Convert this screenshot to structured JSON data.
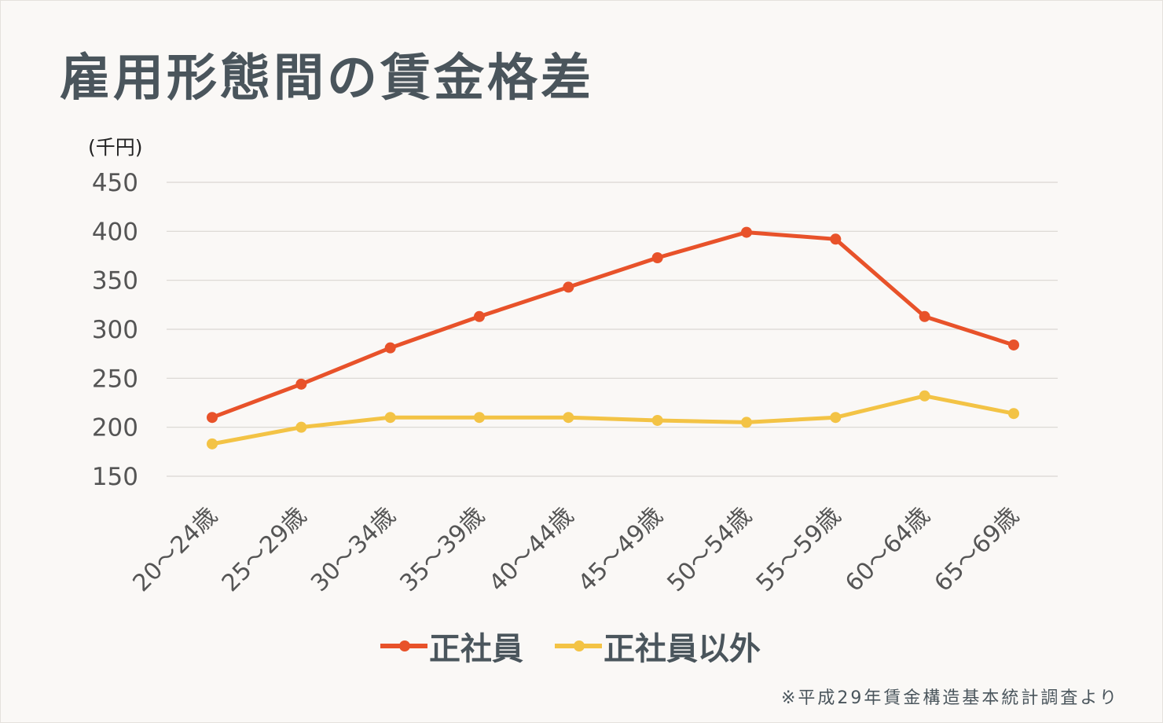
{
  "title": "雇用形態間の賃金格差",
  "source_note": "※平成29年賃金構造基本統計調査より",
  "chart_data": {
    "type": "line",
    "title": "雇用形態間の賃金格差",
    "ylabel": "(千円)",
    "xlabel": "",
    "ylim": [
      150,
      450
    ],
    "yticks": [
      150,
      200,
      250,
      300,
      350,
      400,
      450
    ],
    "grid": true,
    "legend_position": "bottom",
    "categories": [
      "20～24歳",
      "25～29歳",
      "30～34歳",
      "35～39歳",
      "40～44歳",
      "45～49歳",
      "50～54歳",
      "55～59歳",
      "60～64歳",
      "65～69歳"
    ],
    "series": [
      {
        "name": "正社員",
        "color": "#e8522a",
        "values": [
          210,
          244,
          281,
          313,
          343,
          373,
          399,
          392,
          313,
          284
        ]
      },
      {
        "name": "正社員以外",
        "color": "#f3c345",
        "values": [
          183,
          200,
          210,
          210,
          210,
          207,
          205,
          210,
          232,
          214
        ]
      }
    ]
  }
}
